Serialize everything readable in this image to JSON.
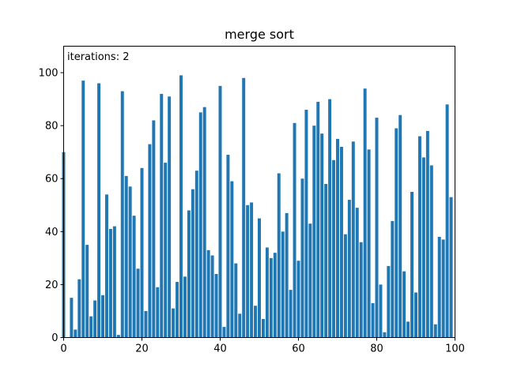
{
  "chart_data": {
    "type": "bar",
    "title": "merge sort",
    "annotation": "iterations: 2",
    "xlabel": "",
    "ylabel": "",
    "xlim": [
      0,
      100
    ],
    "ylim": [
      0,
      110
    ],
    "xticks": [
      0,
      20,
      40,
      60,
      80,
      100
    ],
    "yticks": [
      0,
      20,
      40,
      60,
      80,
      100
    ],
    "grid": false,
    "bar_color": "#1f77b4",
    "x": [
      0,
      1,
      2,
      3,
      4,
      5,
      6,
      7,
      8,
      9,
      10,
      11,
      12,
      13,
      14,
      15,
      16,
      17,
      18,
      19,
      20,
      21,
      22,
      23,
      24,
      25,
      26,
      27,
      28,
      29,
      30,
      31,
      32,
      33,
      34,
      35,
      36,
      37,
      38,
      39,
      40,
      41,
      42,
      43,
      44,
      45,
      46,
      47,
      48,
      49,
      50,
      51,
      52,
      53,
      54,
      55,
      56,
      57,
      58,
      59,
      60,
      61,
      62,
      63,
      64,
      65,
      66,
      67,
      68,
      69,
      70,
      71,
      72,
      73,
      74,
      75,
      76,
      77,
      78,
      79,
      80,
      81,
      82,
      83,
      84,
      85,
      86,
      87,
      88,
      89,
      90,
      91,
      92,
      93,
      94,
      95,
      96,
      97,
      98,
      99
    ],
    "values": [
      70,
      0,
      15,
      3,
      22,
      97,
      35,
      8,
      14,
      96,
      16,
      54,
      41,
      42,
      1,
      93,
      61,
      57,
      46,
      26,
      64,
      10,
      73,
      82,
      19,
      92,
      66,
      91,
      11,
      21,
      99,
      23,
      48,
      56,
      63,
      85,
      87,
      33,
      31,
      24,
      95,
      4,
      69,
      59,
      28,
      9,
      98,
      50,
      51,
      12,
      45,
      7,
      34,
      30,
      32,
      62,
      40,
      47,
      18,
      81,
      29,
      60,
      86,
      43,
      80,
      89,
      77,
      58,
      90,
      67,
      75,
      72,
      39,
      52,
      74,
      49,
      36,
      94,
      71,
      13,
      83,
      20,
      2,
      27,
      44,
      79,
      84,
      25,
      6,
      55,
      17,
      76,
      68,
      78,
      65,
      5,
      38,
      37,
      88,
      53
    ]
  }
}
